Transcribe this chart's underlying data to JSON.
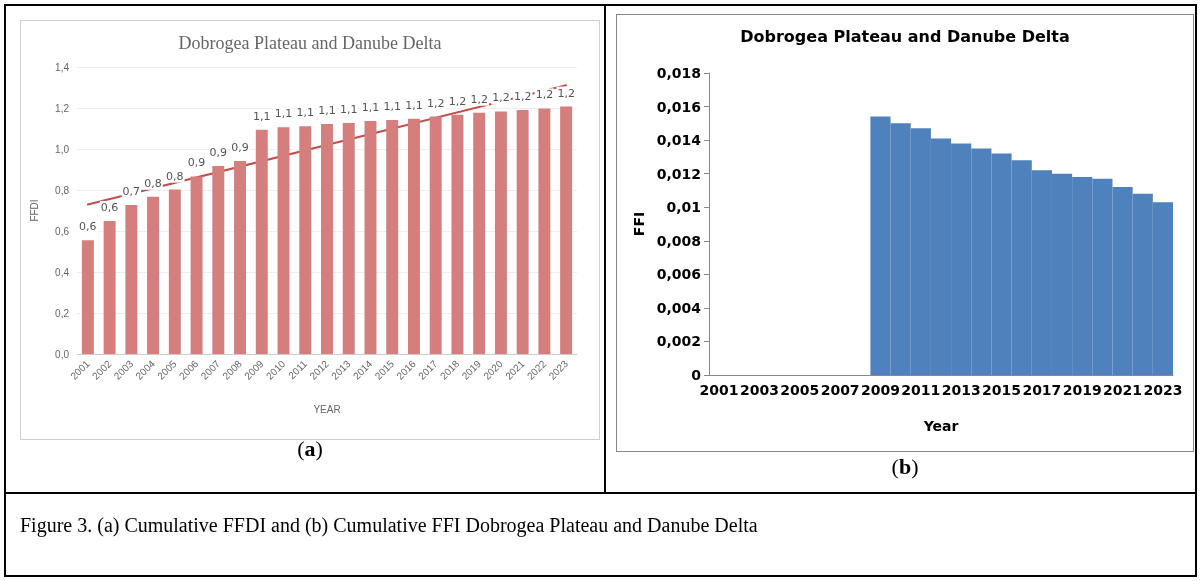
{
  "chart_data": [
    {
      "type": "bar",
      "title": "Dobrogea Plateau and Danube Delta",
      "xlabel": "YEAR",
      "ylabel": "FFDI",
      "categories": [
        "2001",
        "2002",
        "2003",
        "2004",
        "2005",
        "2006",
        "2007",
        "2008",
        "2009",
        "2010",
        "2011",
        "2012",
        "2013",
        "2014",
        "2015",
        "2016",
        "2017",
        "2018",
        "2019",
        "2020",
        "2021",
        "2022",
        "2023"
      ],
      "series": [
        {
          "color": "#d47f7e",
          "values": [
            0.555,
            0.649,
            0.727,
            0.767,
            0.802,
            0.866,
            0.917,
            0.941,
            1.094,
            1.106,
            1.111,
            1.122,
            1.127,
            1.136,
            1.141,
            1.148,
            1.158,
            1.167,
            1.177,
            1.183,
            1.19,
            1.198,
            1.207
          ],
          "value_labels": [
            "0,6",
            "0,6",
            "0,7",
            "0,8",
            "0,8",
            "0,9",
            "0,9",
            "0,9",
            "1,1",
            "1,1",
            "1,1",
            "1,1",
            "1,1",
            "1,1",
            "1,1",
            "1,1",
            "1,2",
            "1,2",
            "1,2",
            "1,2",
            "1,2",
            "1,2",
            "1,2"
          ]
        },
        {
          "type": "line",
          "color": "#c0504d",
          "values": [
            0.729,
            null,
            null,
            null,
            null,
            null,
            null,
            null,
            null,
            null,
            null,
            null,
            null,
            null,
            null,
            null,
            null,
            null,
            null,
            null,
            null,
            null,
            1.311
          ]
        }
      ],
      "marker": "none",
      "line_style": "solid",
      "ylim": [
        0,
        1.4
      ],
      "yticks": [
        {
          "value": 0,
          "label": "0,0"
        },
        {
          "value": 0.2,
          "label": "0,2"
        },
        {
          "value": 0.4,
          "label": "0,4"
        },
        {
          "value": 0.6,
          "label": "0,6"
        },
        {
          "value": 0.8,
          "label": "0,8"
        },
        {
          "value": 1.0,
          "label": "1,0"
        },
        {
          "value": 1.2,
          "label": "1,2"
        },
        {
          "value": 1.4,
          "label": "1,4"
        }
      ],
      "grid": "y",
      "annotations": [
        "(a)",
        "Figure 3. (a) Cumulative FFDI and (b) Cumulative FFI Dobrogea Plateau and Danube Delta"
      ]
    },
    {
      "type": "bar",
      "title": "Dobrogea Plateau and Danube Delta",
      "xlabel": "Year",
      "ylabel": "FFI",
      "categories": [
        "2001",
        null,
        "2003",
        null,
        "2005",
        null,
        "2007",
        null,
        "2009",
        null,
        "2011",
        null,
        "2013",
        null,
        "2015",
        null,
        "2017",
        null,
        "2019",
        null,
        "2021",
        null,
        "2023"
      ],
      "values": [
        null,
        null,
        null,
        null,
        null,
        null,
        null,
        null,
        0.0154,
        0.015,
        0.0147,
        0.0141,
        0.0138,
        0.0135,
        0.0132,
        0.0128,
        0.0122,
        0.012,
        0.0118,
        0.0117,
        0.0112,
        0.0108,
        0.0103
      ],
      "color": "#4f81bd",
      "ylim": [
        0,
        0.018
      ],
      "yticks": [
        0,
        {
          "value": 0.002,
          "label": "0,002"
        },
        {
          "value": 0.004,
          "label": "0,004"
        },
        {
          "value": 0.006,
          "label": "0,006"
        },
        {
          "value": 0.008,
          "label": "0,008"
        },
        {
          "value": 0.01,
          "label": "0,01"
        },
        {
          "value": 0.012,
          "label": "0,012"
        },
        {
          "value": 0.014,
          "label": "0,014"
        },
        {
          "value": 0.016,
          "label": "0,016"
        },
        {
          "value": 0.018,
          "label": "0,018"
        }
      ],
      "grid": false,
      "annotations": [
        "(b)"
      ]
    }
  ]
}
